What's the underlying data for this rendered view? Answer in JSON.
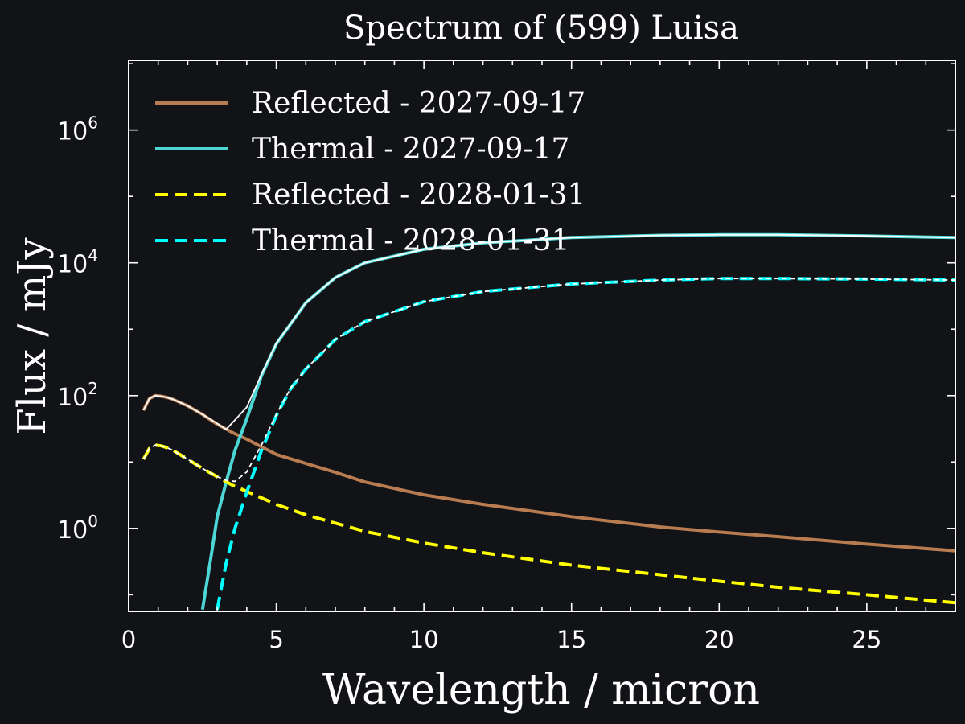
{
  "chart_data": {
    "type": "line",
    "title": "Spectrum of (599) Luisa",
    "xlabel": "Wavelength / micron",
    "ylabel": "Flux / mJy",
    "xlim": [
      0,
      28
    ],
    "ylim_log10": [
      -1.25,
      7.05
    ],
    "yscale": "log",
    "x_ticks": [
      0,
      5,
      10,
      15,
      20,
      25
    ],
    "y_ticks": [
      {
        "base": "10",
        "exp": "0",
        "log10": 0
      },
      {
        "base": "10",
        "exp": "2",
        "log10": 2
      },
      {
        "base": "10",
        "exp": "4",
        "log10": 4
      },
      {
        "base": "10",
        "exp": "6",
        "log10": 6
      }
    ],
    "legend_position": "top-left",
    "background_color": "#111316",
    "series": [
      {
        "name": "Reflected - 2027-09-17",
        "color": "#b87c50",
        "dash": "solid",
        "x": [
          0.5,
          0.7,
          0.9,
          1.1,
          1.3,
          1.5,
          2.0,
          2.5,
          3.0,
          3.5,
          4.0,
          5.0,
          6.0,
          7.0,
          8.0,
          10.0,
          12.0,
          15.0,
          18.0,
          20.0,
          22.0,
          25.0,
          28.0
        ],
        "y": [
          60,
          90,
          100,
          98,
          94,
          88,
          70,
          52,
          37,
          28,
          22,
          13,
          9.5,
          7.0,
          5.0,
          3.2,
          2.3,
          1.5,
          1.05,
          0.88,
          0.75,
          0.58,
          0.46
        ]
      },
      {
        "name": "Thermal - 2027-09-17",
        "color": "#4dd6d6",
        "dash": "solid",
        "x": [
          2.5,
          2.8,
          3.0,
          3.3,
          3.6,
          4.0,
          4.5,
          5.0,
          6.0,
          7.0,
          8.0,
          10.0,
          12.0,
          15.0,
          18.0,
          20.0,
          22.0,
          25.0,
          28.0
        ],
        "y": [
          0.06,
          0.4,
          1.5,
          5,
          15,
          45,
          200,
          600,
          2500,
          6000,
          10000,
          16000,
          20000,
          24000,
          26000,
          26500,
          26500,
          25500,
          24000
        ]
      },
      {
        "name": "Reflected - 2028-01-31",
        "color": "#ffff00",
        "dash": "dashed",
        "x": [
          0.5,
          0.7,
          0.9,
          1.1,
          1.3,
          1.5,
          2.0,
          2.5,
          3.0,
          3.5,
          4.0,
          5.0,
          6.0,
          7.0,
          8.0,
          10.0,
          12.0,
          15.0,
          18.0,
          20.0,
          22.0,
          25.0,
          28.0
        ],
        "y": [
          11,
          16,
          18,
          17.5,
          16.5,
          15,
          11,
          8,
          6,
          4.5,
          3.6,
          2.3,
          1.6,
          1.2,
          0.9,
          0.6,
          0.43,
          0.28,
          0.2,
          0.16,
          0.13,
          0.1,
          0.076
        ]
      },
      {
        "name": "Thermal - 2028-01-31",
        "color": "#00ffff",
        "dash": "dashed",
        "x": [
          3.0,
          3.3,
          3.6,
          4.0,
          4.5,
          5.0,
          5.5,
          6.0,
          7.0,
          8.0,
          10.0,
          12.0,
          15.0,
          18.0,
          20.0,
          22.0,
          25.0,
          28.0
        ],
        "y": [
          0.06,
          0.3,
          1.0,
          3.5,
          15,
          50,
          130,
          250,
          700,
          1300,
          2600,
          3700,
          4800,
          5500,
          5800,
          5800,
          5700,
          5500
        ]
      }
    ],
    "total_curves": [
      {
        "color": "#ffffff",
        "x": [
          0.5,
          0.7,
          0.9,
          1.1,
          1.3,
          1.5,
          2.0,
          2.5,
          3.0,
          3.3,
          3.6,
          4.0,
          4.5,
          5.0,
          6.0,
          7.0,
          8.0,
          10.0,
          12.0,
          15.0,
          18.0,
          20.0,
          22.0,
          25.0,
          28.0
        ],
        "y": [
          60,
          90,
          100,
          98,
          94,
          88,
          70,
          52,
          38,
          31,
          43,
          67,
          210,
          613,
          2510,
          6007,
          10005,
          16003,
          20002,
          24001,
          26001,
          26501,
          26501,
          25501,
          24000
        ]
      },
      {
        "color": "#ffffff",
        "x": [
          0.5,
          0.7,
          0.9,
          1.1,
          1.3,
          1.5,
          2.0,
          2.5,
          3.0,
          3.3,
          3.6,
          4.0,
          4.5,
          5.0,
          5.5,
          6.0,
          7.0,
          8.0,
          10.0,
          12.0,
          15.0,
          18.0,
          20.0,
          22.0,
          25.0,
          28.0
        ],
        "y": [
          11,
          16,
          18,
          17.5,
          16.5,
          15,
          11,
          8,
          6,
          5.3,
          5.1,
          7.1,
          18,
          52,
          132,
          252,
          701,
          1301,
          2601,
          3700,
          4800,
          5500,
          5800,
          5800,
          5700,
          5500
        ]
      }
    ]
  }
}
